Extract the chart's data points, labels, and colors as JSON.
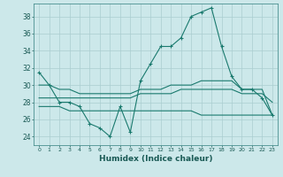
{
  "xlabel": "Humidex (Indice chaleur)",
  "xlim": [
    -0.5,
    23.5
  ],
  "ylim": [
    23.0,
    39.5
  ],
  "yticks": [
    24,
    26,
    28,
    30,
    32,
    34,
    36,
    38
  ],
  "xticks": [
    0,
    1,
    2,
    3,
    4,
    5,
    6,
    7,
    8,
    9,
    10,
    11,
    12,
    13,
    14,
    15,
    16,
    17,
    18,
    19,
    20,
    21,
    22,
    23
  ],
  "bg_color": "#cce8ea",
  "grid_color": "#aacdd0",
  "line_color": "#1a7a6e",
  "line1": [
    31.5,
    30.0,
    28.0,
    28.0,
    27.5,
    25.5,
    25.0,
    24.0,
    27.5,
    24.5,
    30.5,
    32.5,
    34.5,
    34.5,
    35.5,
    38.0,
    38.5,
    39.0,
    34.5,
    31.0,
    29.5,
    29.5,
    28.5,
    26.5
  ],
  "line2": [
    30.0,
    30.0,
    29.5,
    29.5,
    29.0,
    29.0,
    29.0,
    29.0,
    29.0,
    29.0,
    29.5,
    29.5,
    29.5,
    30.0,
    30.0,
    30.0,
    30.5,
    30.5,
    30.5,
    30.5,
    29.5,
    29.5,
    29.5,
    26.5
  ],
  "line3": [
    28.5,
    28.5,
    28.5,
    28.5,
    28.5,
    28.5,
    28.5,
    28.5,
    28.5,
    28.5,
    29.0,
    29.0,
    29.0,
    29.0,
    29.5,
    29.5,
    29.5,
    29.5,
    29.5,
    29.5,
    29.0,
    29.0,
    29.0,
    28.0
  ],
  "line4": [
    27.5,
    27.5,
    27.5,
    27.0,
    27.0,
    27.0,
    27.0,
    27.0,
    27.0,
    27.0,
    27.0,
    27.0,
    27.0,
    27.0,
    27.0,
    27.0,
    26.5,
    26.5,
    26.5,
    26.5,
    26.5,
    26.5,
    26.5,
    26.5
  ]
}
